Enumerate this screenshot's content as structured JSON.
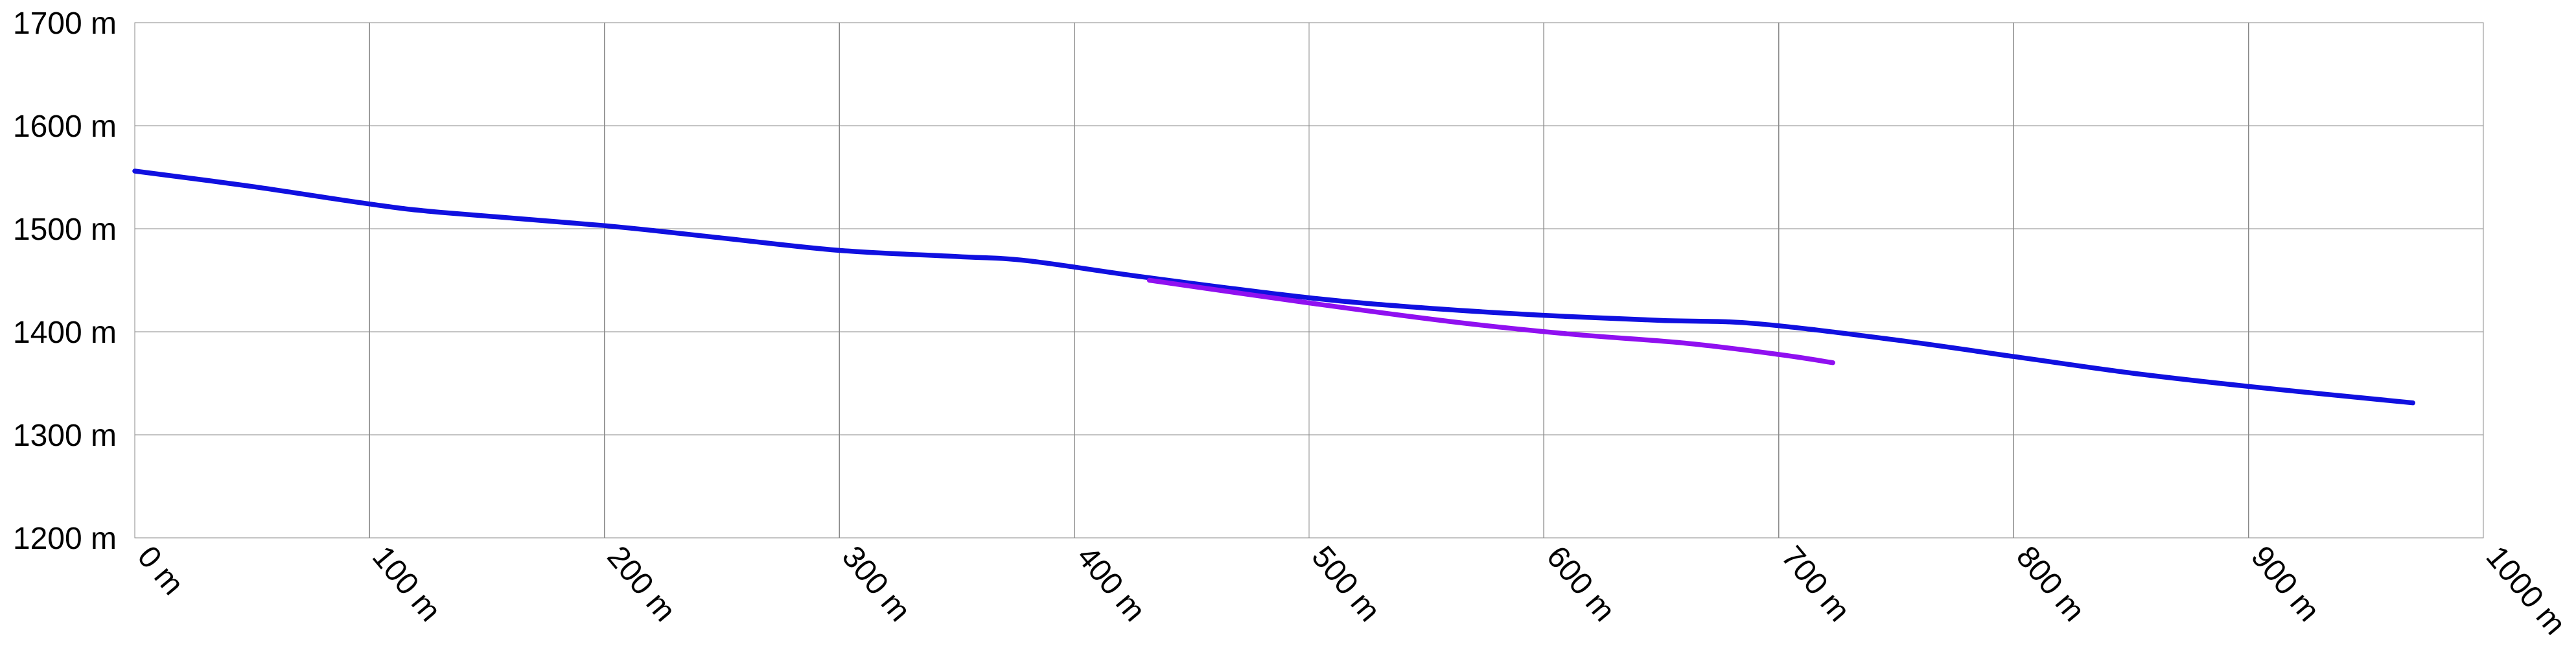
{
  "chart_data": {
    "type": "line",
    "title": "",
    "xlabel": "",
    "ylabel": "",
    "xlim": [
      0,
      1000
    ],
    "ylim": [
      1200,
      1700
    ],
    "grid": true,
    "x_ticks": [
      {
        "value": 0,
        "label": "0 m"
      },
      {
        "value": 100,
        "label": "100 m"
      },
      {
        "value": 200,
        "label": "200 m"
      },
      {
        "value": 300,
        "label": "300 m"
      },
      {
        "value": 400,
        "label": "400 m"
      },
      {
        "value": 500,
        "label": "500 m"
      },
      {
        "value": 600,
        "label": "600 m"
      },
      {
        "value": 700,
        "label": "700 m"
      },
      {
        "value": 800,
        "label": "800 m"
      },
      {
        "value": 900,
        "label": "900 m"
      },
      {
        "value": 1000,
        "label": "1000 m"
      }
    ],
    "y_ticks": [
      {
        "value": 1200,
        "label": "1200 m"
      },
      {
        "value": 1300,
        "label": "1300 m"
      },
      {
        "value": 1400,
        "label": "1400 m"
      },
      {
        "value": 1500,
        "label": "1500 m"
      },
      {
        "value": 1600,
        "label": "1600 m"
      },
      {
        "value": 1700,
        "label": "1700 m"
      }
    ],
    "series": [
      {
        "color": "#1010e0",
        "points": [
          [
            0,
            1556
          ],
          [
            50,
            1541
          ],
          [
            100,
            1524
          ],
          [
            130,
            1516
          ],
          [
            200,
            1503
          ],
          [
            250,
            1491
          ],
          [
            300,
            1479
          ],
          [
            350,
            1473
          ],
          [
            380,
            1469
          ],
          [
            430,
            1453
          ],
          [
            500,
            1433
          ],
          [
            550,
            1423
          ],
          [
            600,
            1416
          ],
          [
            650,
            1411
          ],
          [
            690,
            1408
          ],
          [
            750,
            1392
          ],
          [
            800,
            1376
          ],
          [
            850,
            1360
          ],
          [
            900,
            1347
          ],
          [
            970,
            1331
          ]
        ]
      },
      {
        "color": "#9010f0",
        "points": [
          [
            432,
            1450
          ],
          [
            500,
            1428
          ],
          [
            560,
            1410
          ],
          [
            610,
            1398
          ],
          [
            660,
            1389
          ],
          [
            700,
            1378
          ],
          [
            723,
            1370
          ]
        ]
      }
    ]
  }
}
